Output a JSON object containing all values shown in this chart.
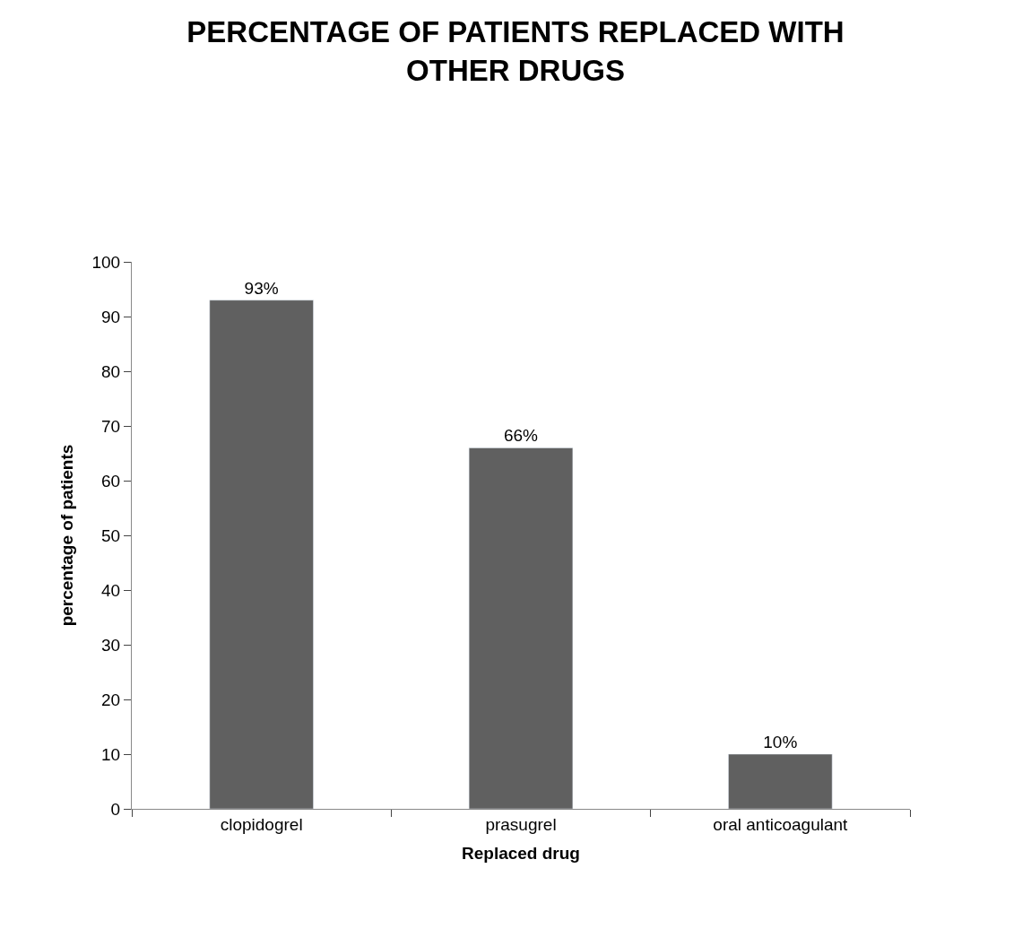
{
  "chart_data": {
    "type": "bar",
    "title": "PERCENTAGE OF PATIENTS REPLACED WITH OTHER DRUGS",
    "xlabel": "Replaced drug",
    "ylabel": "percentage of patients",
    "categories": [
      "clopidogrel",
      "prasugrel",
      "oral anticoagulant"
    ],
    "values": [
      93,
      66,
      10
    ],
    "value_labels": [
      "93%",
      "66%",
      "10%"
    ],
    "color": "#606060",
    "ylim": [
      0,
      100
    ],
    "yticks": [
      0,
      10,
      20,
      30,
      40,
      50,
      60,
      70,
      80,
      90,
      100
    ]
  }
}
